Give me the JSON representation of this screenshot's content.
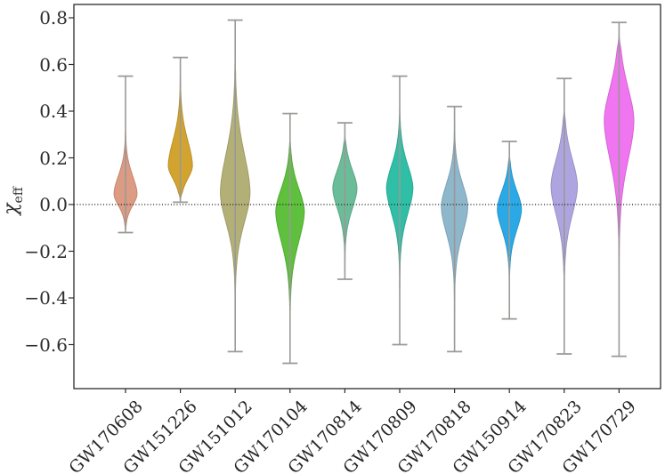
{
  "figure": {
    "y_axis_label_main": "χ",
    "y_axis_label_sub": "eff"
  },
  "chart_data": {
    "type": "violin",
    "title": "",
    "ylabel": "chi_eff",
    "xlabel": "",
    "ylim": [
      -0.79,
      0.86
    ],
    "grid": false,
    "zero_reference_line": 0.0,
    "yticks": [
      0.8,
      0.6,
      0.4,
      0.2,
      0.0,
      -0.2,
      -0.4,
      -0.6
    ],
    "ytick_labels": [
      "0.8",
      "0.6",
      "0.4",
      "0.2",
      "0.0",
      "−0.2",
      "−0.4",
      "−0.6"
    ],
    "frame_color": "#2b2b2b",
    "whisker_color": "#999996",
    "zero_line_color": "#111111",
    "text_color": "#2e2e2e",
    "categories": [
      "GW170608",
      "GW151226",
      "GW151012",
      "GW170104",
      "GW170814",
      "GW170809",
      "GW170818",
      "GW150914",
      "GW170823",
      "GW170729"
    ],
    "series": [
      {
        "name": "GW170608",
        "color": "#DC9B83",
        "whisker_min": -0.12,
        "whisker_max": 0.55,
        "peak": 0.045,
        "sigma_down": 0.05,
        "sigma_up": 0.08,
        "body_min": -0.115,
        "body_max": 0.32,
        "rel_half_width": 0.21
      },
      {
        "name": "GW151226",
        "color": "#D2A42F",
        "whisker_min": 0.01,
        "whisker_max": 0.63,
        "peak": 0.165,
        "sigma_down": 0.055,
        "sigma_up": 0.11,
        "body_min": 0.015,
        "body_max": 0.58,
        "rel_half_width": 0.22
      },
      {
        "name": "GW151012",
        "color": "#B3B077",
        "whisker_min": -0.63,
        "whisker_max": 0.79,
        "peak": 0.05,
        "sigma_down": 0.13,
        "sigma_up": 0.17,
        "body_min": -0.45,
        "body_max": 0.7,
        "rel_half_width": 0.27
      },
      {
        "name": "GW170104",
        "color": "#5EC03D",
        "whisker_min": -0.68,
        "whisker_max": 0.39,
        "peak": -0.03,
        "sigma_down": 0.13,
        "sigma_up": 0.1,
        "body_min": -0.52,
        "body_max": 0.3,
        "rel_half_width": 0.26
      },
      {
        "name": "GW170814",
        "color": "#6BBD9A",
        "whisker_min": -0.32,
        "whisker_max": 0.35,
        "peak": 0.07,
        "sigma_down": 0.09,
        "sigma_up": 0.08,
        "body_min": -0.28,
        "body_max": 0.3,
        "rel_half_width": 0.22
      },
      {
        "name": "GW170809",
        "color": "#2FBFA7",
        "whisker_min": -0.6,
        "whisker_max": 0.55,
        "peak": 0.07,
        "sigma_down": 0.11,
        "sigma_up": 0.1,
        "body_min": -0.42,
        "body_max": 0.42,
        "rel_half_width": 0.24
      },
      {
        "name": "GW170818",
        "color": "#8FB7CC",
        "whisker_min": -0.63,
        "whisker_max": 0.42,
        "peak": -0.01,
        "sigma_down": 0.115,
        "sigma_up": 0.1,
        "body_min": -0.47,
        "body_max": 0.35,
        "rel_half_width": 0.24
      },
      {
        "name": "GW150914",
        "color": "#2BA9E6",
        "whisker_min": -0.49,
        "whisker_max": 0.27,
        "peak": -0.02,
        "sigma_down": 0.09,
        "sigma_up": 0.08,
        "body_min": -0.36,
        "body_max": 0.22,
        "rel_half_width": 0.22
      },
      {
        "name": "GW170823",
        "color": "#AEA5E0",
        "whisker_min": -0.64,
        "whisker_max": 0.54,
        "peak": 0.08,
        "sigma_down": 0.125,
        "sigma_up": 0.115,
        "body_min": -0.45,
        "body_max": 0.42,
        "rel_half_width": 0.24
      },
      {
        "name": "GW170729",
        "color": "#F075F0",
        "whisker_min": -0.65,
        "whisker_max": 0.78,
        "peak": 0.36,
        "sigma_down": 0.17,
        "sigma_up": 0.14,
        "body_min": -0.3,
        "body_max": 0.73,
        "rel_half_width": 0.27
      }
    ]
  }
}
